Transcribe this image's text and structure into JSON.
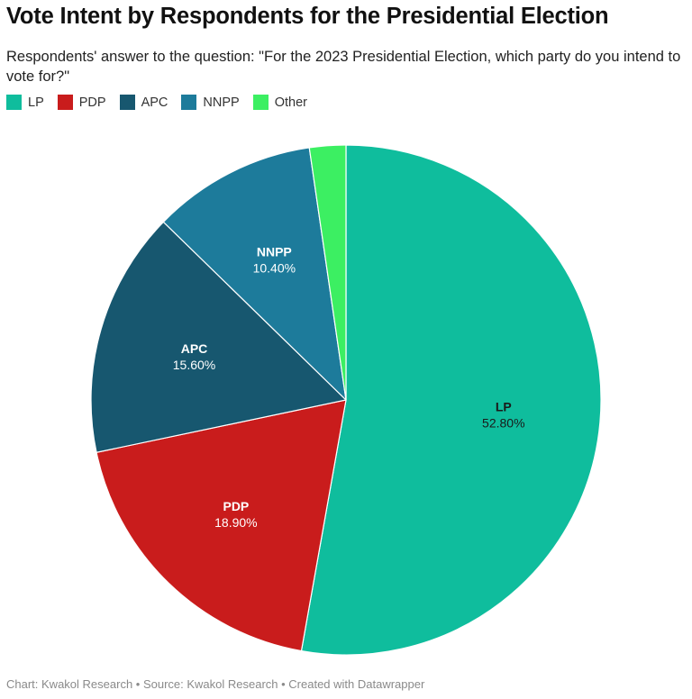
{
  "chart_data": {
    "type": "pie",
    "title": "Vote Intent by Respondents for the Presidential Election",
    "subtitle": "Respondents' answer to the question: \"For the 2023 Presidential Election, which party do you intend to vote for?\"",
    "legend_placement": "top-left",
    "categories": [
      "LP",
      "PDP",
      "APC",
      "NNPP",
      "Other"
    ],
    "values": [
      52.8,
      18.9,
      15.6,
      10.4,
      2.3
    ],
    "value_labels": [
      "52.80%",
      "18.90%",
      "15.60%",
      "10.40%",
      ""
    ],
    "colors": [
      "#0fbd9d",
      "#c91c1c",
      "#17576f",
      "#1d7b9b",
      "#3cef62"
    ],
    "label_colors": [
      "#1a1a1a",
      "#ffffff",
      "#ffffff",
      "#ffffff",
      "#ffffff"
    ],
    "show_label": [
      true,
      true,
      true,
      true,
      false
    ],
    "unit": "%"
  },
  "footer": "Chart: Kwakol Research • Source: Kwakol Research • Created with Datawrapper"
}
